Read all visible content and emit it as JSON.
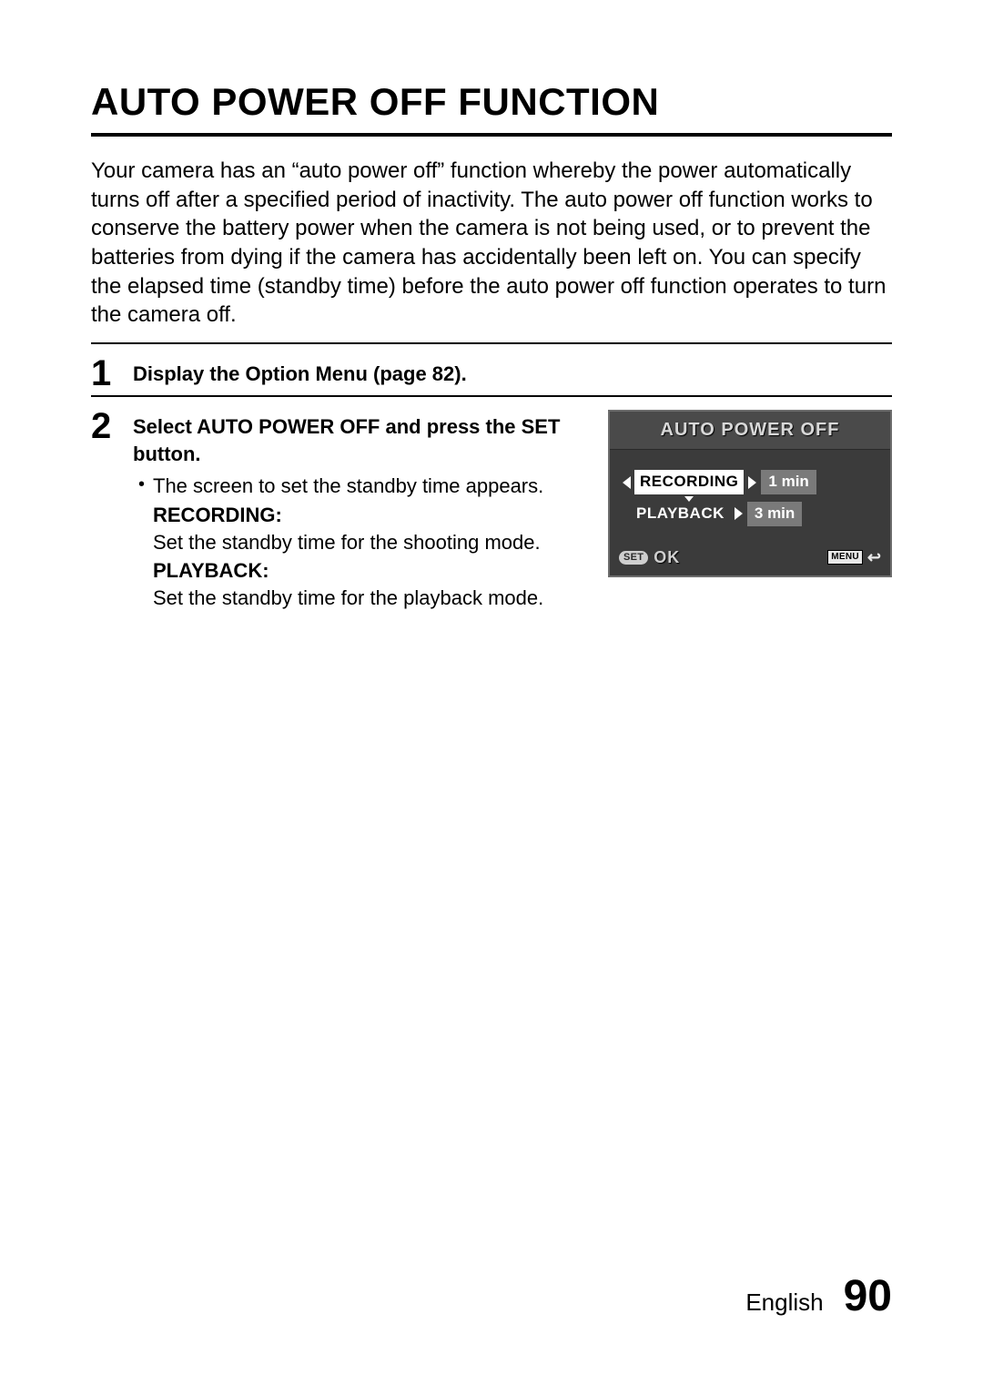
{
  "title": "AUTO POWER OFF FUNCTION",
  "intro": "Your camera has an “auto power off” function whereby the power automatically turns off after a specified period of inactivity. The auto power off function works to conserve the battery power when the camera is not being used, or to prevent the batteries from dying if the camera has accidentally been left on. You can specify the elapsed time (standby time) before the auto power off function operates to turn the camera off.",
  "steps": {
    "s1": {
      "num": "1",
      "head": "Display the Option Menu (page 82)."
    },
    "s2": {
      "num": "2",
      "head": "Select AUTO POWER OFF and press the SET button.",
      "bullet": "The screen to set the standby time appears.",
      "recording": {
        "label": "RECORDING:",
        "desc": "Set the standby time for the shooting mode."
      },
      "playback": {
        "label": "PLAYBACK:",
        "desc": "Set the standby time for the playback mode."
      }
    }
  },
  "screen": {
    "title": "AUTO POWER OFF",
    "row1": {
      "label": "RECORDING",
      "value": "1 min"
    },
    "row2": {
      "label": "PLAYBACK",
      "value": "3 min"
    },
    "footer": {
      "set": "SET",
      "ok": "OK",
      "menu": "MENU"
    }
  },
  "footer": {
    "lang": "English",
    "page": "90"
  },
  "colors": {
    "screen_bg": "#3b3b3b",
    "screen_header_bg": "#4a4a4a",
    "screen_border": "#6d6d6d",
    "value_bg": "#7a7a7a",
    "sel_bg": "#ffffff",
    "text_light": "#d8d8d8"
  }
}
